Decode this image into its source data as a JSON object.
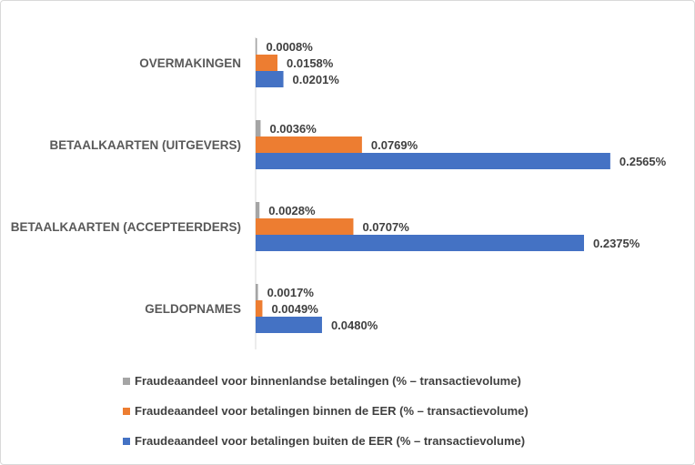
{
  "chart_data": {
    "type": "bar",
    "orientation": "horizontal",
    "title": "",
    "categories": [
      "OVERMAKINGEN",
      "BETAALKAARTEN (UITGEVERS)",
      "BETAALKAARTEN (ACCEPTEERDERS)",
      "GELDOPNAMES"
    ],
    "series": [
      {
        "name": "Fraudeaandeel voor binnenlandse betalingen (% – transactievolume)",
        "color": "#a5a5a5",
        "values": [
          0.0008,
          0.0036,
          0.0028,
          0.0017
        ],
        "labels": [
          "0.0008%",
          "0.0036%",
          "0.0028%",
          "0.0017%"
        ]
      },
      {
        "name": "Fraudeaandeel voor betalingen binnen de EER (% – transactievolume)",
        "color": "#ed7d31",
        "values": [
          0.0158,
          0.0769,
          0.0707,
          0.0049
        ],
        "labels": [
          "0.0158%",
          "0.0769%",
          "0.0707%",
          "0.0049%"
        ]
      },
      {
        "name": "Fraudeaandeel voor betalingen buiten de EER (% – transactievolume)",
        "color": "#4472c4",
        "values": [
          0.0201,
          0.2565,
          0.2375,
          0.048
        ],
        "labels": [
          "0.0201%",
          "0.2565%",
          "0.2375%",
          "0.0480%"
        ]
      }
    ],
    "xlabel": "",
    "ylabel": "",
    "xlim": [
      0,
      0.28
    ],
    "grid": false,
    "legend_position": "bottom"
  }
}
